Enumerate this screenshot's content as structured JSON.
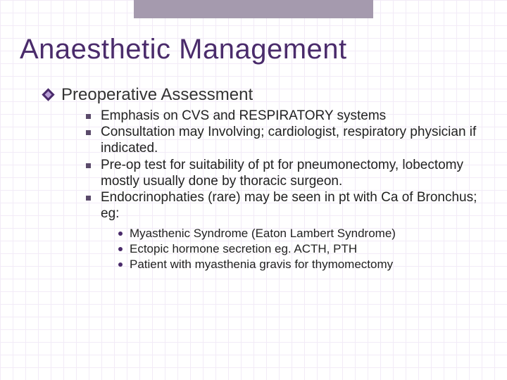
{
  "title": "Anaesthetic Management",
  "section": {
    "heading": "Preoperative Assessment"
  },
  "bullets": [
    {
      "text": "Emphasis on CVS and RESPIRATORY systems"
    },
    {
      "text": "Consultation may Involving; cardiologist, respiratory physician if indicated."
    },
    {
      "text": "Pre-op test for suitability of pt for pneumonectomy, lobectomy mostly usually done by thoracic surgeon."
    },
    {
      "text": "Endocrinophaties (rare) may be seen in pt with Ca of Bronchus; eg:"
    }
  ],
  "subbullets": [
    {
      "text": "Myasthenic Syndrome (Eaton Lambert Syndrome)"
    },
    {
      "text": "Ectopic hormone secretion eg. ACTH, PTH"
    },
    {
      "text": "Patient with myasthenia gravis for thymomectomy"
    }
  ],
  "style": {
    "title_color": "#4a2b6b",
    "title_fontsize": 40,
    "heading_fontsize": 24,
    "bullet_fontsize": 19,
    "sub_fontsize": 17,
    "grid_color": "#e6d9f0",
    "grid_size": 18,
    "topbar_color": "#a59aae",
    "diamond_outer": "#4a2b6b",
    "diamond_inner": "#b89fd6",
    "square_color": "#5a4a6a",
    "dot_color": "#4a2b6b",
    "background": "#ffffff"
  }
}
